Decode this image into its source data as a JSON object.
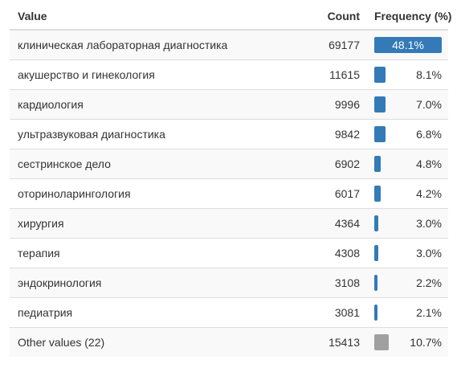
{
  "header": {
    "value": "Value",
    "count": "Count",
    "frequency": "Frequency (%)"
  },
  "colors": {
    "bar": "#337ab7",
    "other_bar": "#a0a0a0"
  },
  "rows": [
    {
      "value": "клиническая лабораторная диагностика",
      "count": "69177",
      "pct": "48.1%",
      "fraction": 0.481,
      "label_inside": true
    },
    {
      "value": "акушерство и гинекология",
      "count": "11615",
      "pct": "8.1%",
      "fraction": 0.081
    },
    {
      "value": "кардиология",
      "count": "9996",
      "pct": "7.0%",
      "fraction": 0.07
    },
    {
      "value": "ультразвуковая диагностика",
      "count": "9842",
      "pct": "6.8%",
      "fraction": 0.068
    },
    {
      "value": "сестринское дело",
      "count": "6902",
      "pct": "4.8%",
      "fraction": 0.048
    },
    {
      "value": "оториноларингология",
      "count": "6017",
      "pct": "4.2%",
      "fraction": 0.042
    },
    {
      "value": "хирургия",
      "count": "4364",
      "pct": "3.0%",
      "fraction": 0.03
    },
    {
      "value": "терапия",
      "count": "4308",
      "pct": "3.0%",
      "fraction": 0.03
    },
    {
      "value": "эндокринология",
      "count": "3108",
      "pct": "2.2%",
      "fraction": 0.022
    },
    {
      "value": "педиатрия",
      "count": "3081",
      "pct": "2.1%",
      "fraction": 0.021
    },
    {
      "value": "Other values (22)",
      "count": "15413",
      "pct": "10.7%",
      "fraction": 0.107,
      "is_other": true
    }
  ]
}
